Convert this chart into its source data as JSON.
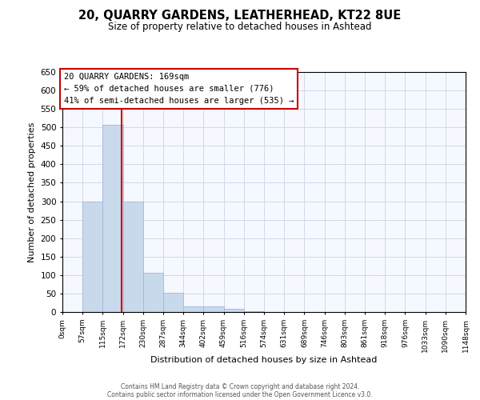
{
  "title": "20, QUARRY GARDENS, LEATHERHEAD, KT22 8UE",
  "subtitle": "Size of property relative to detached houses in Ashtead",
  "xlabel": "Distribution of detached houses by size in Ashtead",
  "ylabel": "Number of detached properties",
  "property_label": "20 QUARRY GARDENS: 169sqm",
  "annotation_line1": "← 59% of detached houses are smaller (776)",
  "annotation_line2": "41% of semi-detached houses are larger (535) →",
  "bar_edges": [
    0,
    57,
    115,
    172,
    230,
    287,
    344,
    402,
    459,
    516,
    574,
    631,
    689,
    746,
    803,
    861,
    918,
    976,
    1033,
    1090,
    1148
  ],
  "bar_heights": [
    0,
    300,
    507,
    300,
    107,
    53,
    15,
    15,
    8,
    3,
    0,
    0,
    0,
    0,
    0,
    0,
    0,
    0,
    0,
    0
  ],
  "bar_color": "#c9d9ec",
  "bar_edge_color": "#a0b8d8",
  "vline_x": 169,
  "vline_color": "#cc0000",
  "ylim": [
    0,
    650
  ],
  "yticks": [
    0,
    50,
    100,
    150,
    200,
    250,
    300,
    350,
    400,
    450,
    500,
    550,
    600,
    650
  ],
  "xtick_labels": [
    "0sqm",
    "57sqm",
    "115sqm",
    "172sqm",
    "230sqm",
    "287sqm",
    "344sqm",
    "402sqm",
    "459sqm",
    "516sqm",
    "574sqm",
    "631sqm",
    "689sqm",
    "746sqm",
    "803sqm",
    "861sqm",
    "918sqm",
    "976sqm",
    "1033sqm",
    "1090sqm",
    "1148sqm"
  ],
  "grid_color": "#d0d8e8",
  "background_color": "#f5f8ff",
  "box_color": "#cc0000",
  "footer_line1": "Contains HM Land Registry data © Crown copyright and database right 2024.",
  "footer_line2": "Contains public sector information licensed under the Open Government Licence v3.0."
}
